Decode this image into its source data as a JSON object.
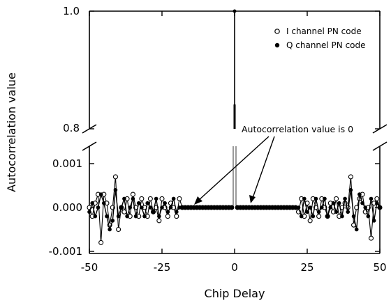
{
  "chart_data": {
    "type": "scatter",
    "xlabel": "Chip Delay",
    "ylabel": "Autocorrelation value",
    "xlim": [
      -50,
      50
    ],
    "x_ticks": [
      "-50",
      "-25",
      "0",
      "25",
      "50"
    ],
    "y_ticks_upper": [
      "0.8",
      "1.0"
    ],
    "y_ticks_lower": [
      "-0.001",
      "0.000",
      "0.001"
    ],
    "y_axis_break": "between 0.0014 and 0.8",
    "upper_ylim": [
      0.8,
      1.0
    ],
    "lower_ylim": [
      -0.00115,
      0.0014
    ],
    "legend_position": "top-right",
    "annotation": "Autocorrelation value is 0",
    "series": [
      {
        "name": "I channel PN code",
        "marker": "open-circle",
        "x": [
          -50,
          -49,
          -48,
          -47,
          -46,
          -45,
          -44,
          -43,
          -42,
          -41,
          -40,
          -39,
          -38,
          -37,
          -36,
          -35,
          -34,
          -33,
          -32,
          -31,
          -30,
          -29,
          -28,
          -27,
          -26,
          -25,
          -24,
          -23,
          -22,
          -21,
          -20,
          -19,
          -18,
          -17,
          -16,
          -15,
          -14,
          -13,
          -12,
          -11,
          -10,
          -9,
          -8,
          -7,
          -6,
          -5,
          -4,
          -3,
          -2,
          -1,
          0,
          1,
          2,
          3,
          4,
          5,
          6,
          7,
          8,
          9,
          10,
          11,
          12,
          13,
          14,
          15,
          16,
          17,
          18,
          19,
          20,
          21,
          22,
          23,
          24,
          25,
          26,
          27,
          28,
          29,
          30,
          31,
          32,
          33,
          34,
          35,
          36,
          37,
          38,
          39,
          40,
          41,
          42,
          43,
          44,
          45,
          46,
          47,
          48,
          49,
          50
        ],
        "y": [
          0.0,
          -0.0002,
          0.0001,
          0.0003,
          -0.0008,
          0.0003,
          0.0001,
          -0.0004,
          0.0,
          0.0007,
          -0.0005,
          0.0,
          -0.0001,
          0.0002,
          -0.0002,
          0.0003,
          0.0,
          -0.0002,
          0.0002,
          0.0,
          -0.0002,
          0.0002,
          -0.0001,
          0.0,
          -0.0003,
          0.0002,
          0.0,
          -0.0002,
          0.0001,
          0.0,
          -0.0002,
          0.0002,
          0.0,
          0.0,
          0.0,
          0.0,
          0.0,
          0.0,
          0.0,
          0.0,
          0.0,
          0.0,
          0.0,
          0.0,
          0.0,
          0.0,
          0.0,
          0.0,
          0.0,
          0.0,
          1.0,
          0.0,
          0.0,
          0.0,
          0.0,
          0.0,
          0.0,
          0.0,
          0.0,
          0.0,
          0.0,
          0.0,
          0.0,
          0.0,
          0.0,
          0.0,
          0.0,
          0.0,
          0.0,
          0.0,
          0.0,
          0.0,
          -0.0001,
          0.0002,
          -0.0002,
          0.0001,
          -0.0003,
          0.0002,
          0.0,
          -0.0002,
          0.0002,
          0.0,
          -0.0002,
          0.0001,
          -0.0001,
          0.0002,
          -0.0002,
          0.0,
          0.0001,
          0.0,
          0.0007,
          -0.0004,
          0.0,
          0.0002,
          0.0003,
          -0.0001,
          0.0,
          -0.0007,
          0.0001,
          0.0002,
          0.0
        ]
      },
      {
        "name": "Q channel PN code",
        "marker": "filled-circle",
        "x": [
          -50,
          -49,
          -48,
          -47,
          -46,
          -45,
          -44,
          -43,
          -42,
          -41,
          -40,
          -39,
          -38,
          -37,
          -36,
          -35,
          -34,
          -33,
          -32,
          -31,
          -30,
          -29,
          -28,
          -27,
          -26,
          -25,
          -24,
          -23,
          -22,
          -21,
          -20,
          -19,
          -18,
          -17,
          -16,
          -15,
          -14,
          -13,
          -12,
          -11,
          -10,
          -9,
          -8,
          -7,
          -6,
          -5,
          -4,
          -3,
          -2,
          -1,
          0,
          1,
          2,
          3,
          4,
          5,
          6,
          7,
          8,
          9,
          10,
          11,
          12,
          13,
          14,
          15,
          16,
          17,
          18,
          19,
          20,
          21,
          22,
          23,
          24,
          25,
          26,
          27,
          28,
          29,
          30,
          31,
          32,
          33,
          34,
          35,
          36,
          37,
          38,
          39,
          40,
          41,
          42,
          43,
          44,
          45,
          46,
          47,
          48,
          49,
          50
        ],
        "y": [
          -0.0001,
          0.0001,
          -0.0002,
          0.0,
          0.0003,
          0.0001,
          -0.0002,
          -0.0005,
          -0.0003,
          0.0004,
          -0.0002,
          0.0,
          0.0002,
          -0.0002,
          0.0,
          0.0002,
          -0.0002,
          0.0001,
          0.0,
          -0.0002,
          0.0001,
          0.0,
          -0.0001,
          0.0002,
          -0.0002,
          0.0,
          0.0001,
          -0.0001,
          0.0,
          0.0002,
          -0.0001,
          0.0,
          0.0,
          0.0,
          0.0,
          0.0,
          0.0,
          0.0,
          0.0,
          0.0,
          0.0,
          0.0,
          0.0,
          0.0,
          0.0,
          0.0,
          0.0,
          0.0,
          0.0,
          0.0,
          1.0,
          0.0,
          0.0,
          0.0,
          0.0,
          0.0,
          0.0,
          0.0,
          0.0,
          0.0,
          0.0,
          0.0,
          0.0,
          0.0,
          0.0,
          0.0,
          0.0,
          0.0,
          0.0,
          0.0,
          0.0,
          0.0,
          0.0,
          -0.0002,
          0.0002,
          -0.0001,
          0.0,
          -0.0002,
          0.0002,
          -0.0001,
          0.0,
          0.0002,
          -0.0002,
          0.0,
          0.0001,
          -0.0001,
          0.0001,
          -0.0002,
          0.0002,
          -0.0001,
          0.0004,
          -0.0002,
          -0.0005,
          0.0003,
          0.0001,
          0.0,
          -0.0002,
          0.0002,
          -0.0003,
          0.0001,
          0.0
        ]
      }
    ]
  }
}
